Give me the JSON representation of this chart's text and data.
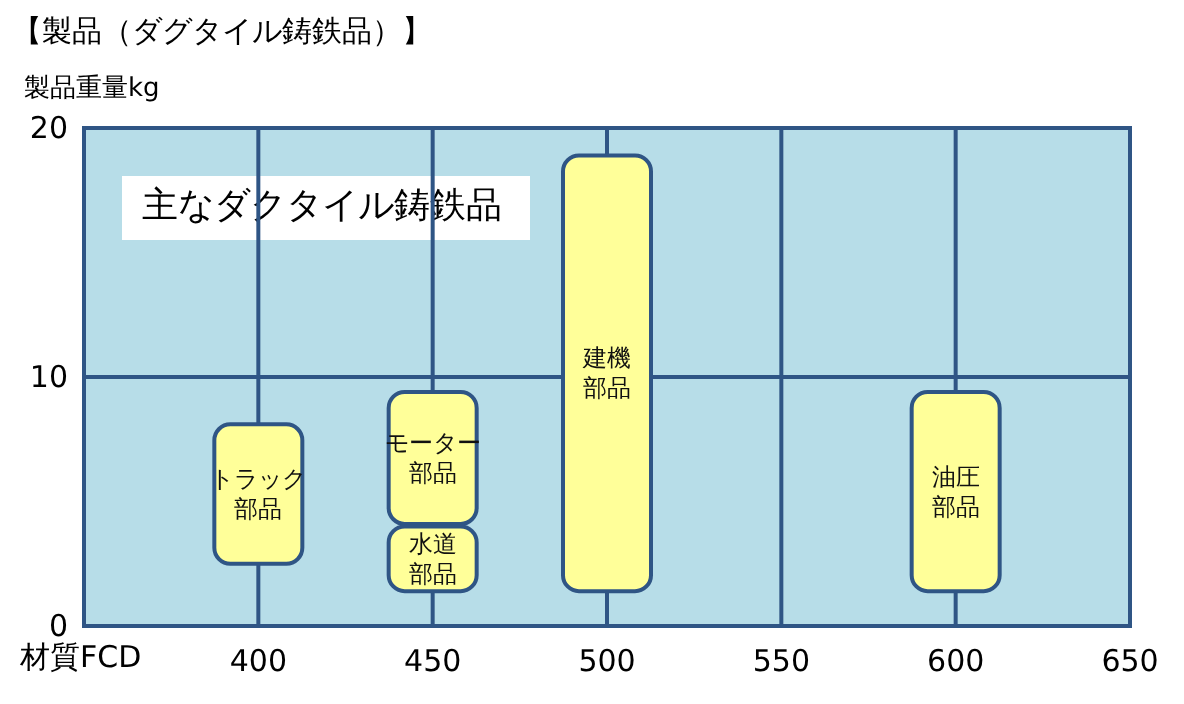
{
  "chart_data": {
    "type": "bar",
    "title": "【製品（ダグタイル鋳鉄品）】",
    "xlabel": "材質FCD",
    "ylabel": "製品重量kg",
    "annotations": [
      "主なダクタイル鋳鉄品"
    ],
    "series": [
      {
        "name": "トラック部品",
        "color": "#ffff99",
        "x": [
          400
        ],
        "base": [
          2.5
        ],
        "values": [
          5.6
        ]
      },
      {
        "name": "モーター部品",
        "color": "#ffff99",
        "x": [
          450
        ],
        "base": [
          4.1
        ],
        "values": [
          5.3
        ]
      },
      {
        "name": "水道部品",
        "color": "#ffff99",
        "x": [
          450
        ],
        "base": [
          1.4
        ],
        "values": [
          2.6
        ]
      },
      {
        "name": "建機部品",
        "color": "#ffff99",
        "x": [
          500
        ],
        "base": [
          1.4
        ],
        "values": [
          17.5
        ]
      },
      {
        "name": "油圧部品",
        "color": "#ffff99",
        "x": [
          600
        ],
        "base": [
          1.4
        ],
        "values": [
          8
        ]
      }
    ],
    "xlim": [
      350,
      650
    ],
    "xticks": [
      400,
      450,
      500,
      550,
      600,
      650
    ],
    "ylim": [
      0,
      20
    ],
    "yticks": [
      0,
      10,
      20
    ],
    "grid": true,
    "legend": false
  }
}
